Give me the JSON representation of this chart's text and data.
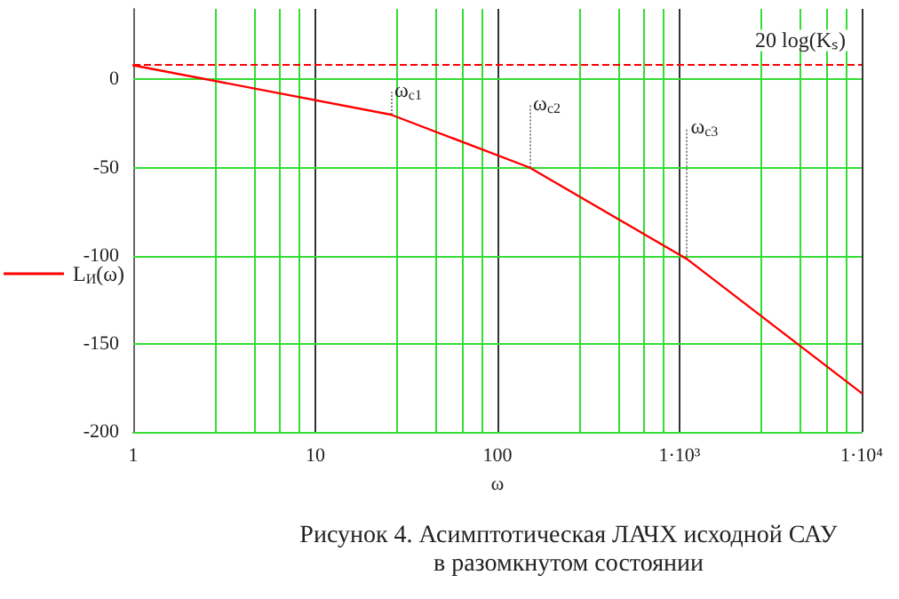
{
  "chart_data": {
    "type": "line",
    "title": "Рисунок 4. Асимптотическая ЛАЧХ исходной САУ в разомкнутом состоянии",
    "xlabel": "ω",
    "x": [
      1,
      26,
      150,
      1100,
      10000
    ],
    "series": [
      {
        "name": "L$_{И}$(ω)",
        "color": "#ff0000",
        "values": [
          8,
          -20,
          -50,
          -102,
          -178
        ]
      }
    ],
    "log": "x",
    "xlim": [
      1,
      10000
    ],
    "ylim": [
      -200,
      40
    ],
    "xticks": [
      1,
      10,
      100,
      {
        "value": 1000,
        "label": "1·10³"
      },
      {
        "value": 10000,
        "label": "1·10⁴"
      }
    ],
    "yticks": [
      -200,
      -150,
      -100,
      -50,
      0
    ],
    "ref_lines": [
      {
        "axis": "y",
        "value": 8,
        "label": "20 log(Kₛ)",
        "color": "#ff0000",
        "line_style": "dashed"
      }
    ],
    "annotations": [
      {
        "text": "ω$_{c1}$",
        "x": 26,
        "y": -20
      },
      {
        "text": "ω$_{c2}$",
        "x": 150,
        "y": -50
      },
      {
        "text": "ω$_{c3}$",
        "x": 1100,
        "y": -102
      }
    ],
    "grid": true,
    "legend": "left",
    "marker": "none",
    "line_style": "solid"
  }
}
